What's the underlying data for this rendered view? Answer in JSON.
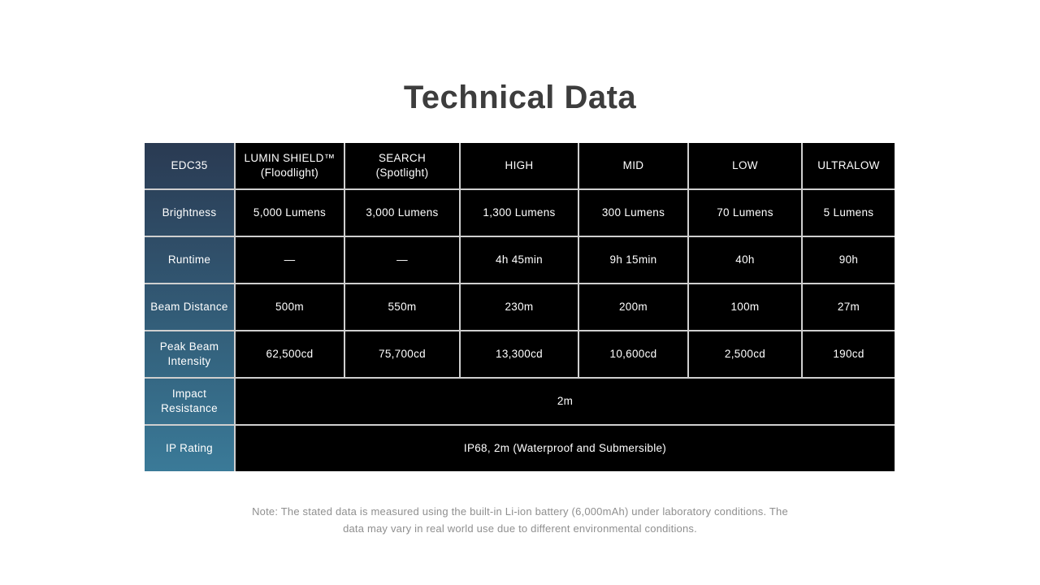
{
  "page": {
    "title": "Technical Data",
    "background": "#ffffff"
  },
  "table": {
    "product_name": "EDC35",
    "column_headers": [
      "LUMIN SHIELD™\n(Floodlight)",
      "SEARCH\n(Spotlight)",
      "HIGH",
      "MID",
      "LOW",
      "ULTRALOW"
    ],
    "rows": [
      {
        "label": "Brightness",
        "cells": [
          "5,000 Lumens",
          "3,000 Lumens",
          "1,300 Lumens",
          "300 Lumens",
          "70 Lumens",
          "5 Lumens"
        ]
      },
      {
        "label": "Runtime",
        "cells": [
          "—",
          "—",
          "4h 45min",
          "9h 15min",
          "40h",
          "90h"
        ]
      },
      {
        "label": "Beam Distance",
        "cells": [
          "500m",
          "550m",
          "230m",
          "200m",
          "100m",
          "27m"
        ]
      },
      {
        "label": "Peak Beam Intensity",
        "cells": [
          "62,500cd",
          "75,700cd",
          "13,300cd",
          "10,600cd",
          "2,500cd",
          "190cd"
        ]
      },
      {
        "label": "Impact Resistance",
        "cells": [
          "2m"
        ],
        "span": true
      },
      {
        "label": "IP Rating",
        "cells": [
          "IP68, 2m (Waterproof and Submersible)"
        ],
        "span": true
      }
    ],
    "colors": {
      "cell_background": "#000000",
      "cell_text": "#ffffff",
      "label_gradient_top": "#2a3a52",
      "label_gradient_bottom": "#3a7a98",
      "grid_line": "#cfcfcf",
      "title_text": "#3d3d3d",
      "note_text": "#8f8f8f"
    }
  },
  "note": "Note: The stated data is measured using the built-in Li-ion battery (6,000mAh) under laboratory conditions. The\ndata may vary in real world use due to different environmental conditions."
}
